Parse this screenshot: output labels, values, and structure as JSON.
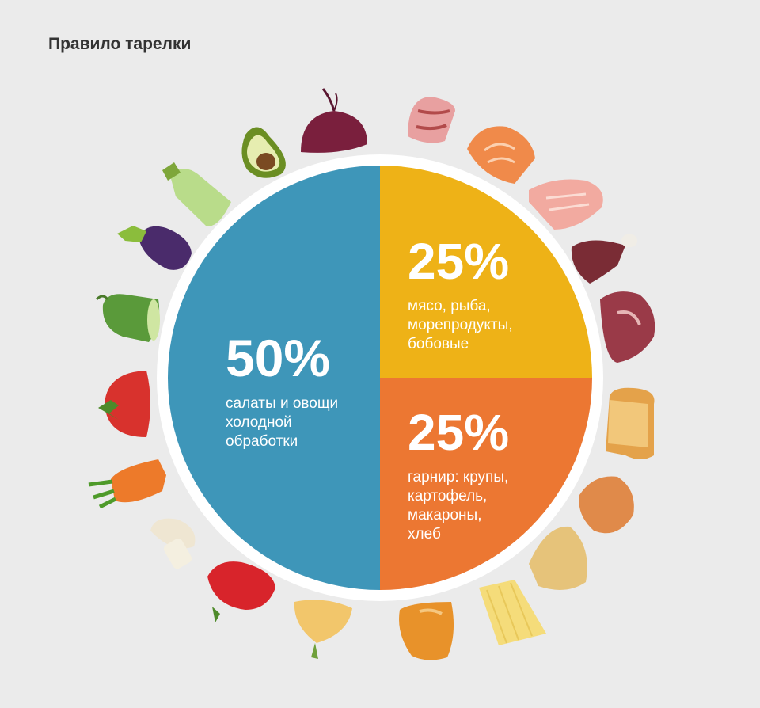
{
  "title": "Правило тарелки",
  "chart_data": {
    "type": "pie",
    "slices": [
      {
        "value": 50,
        "percent_label": "50%",
        "label_lines": [
          "салаты и овощи",
          "холодной",
          "обработки"
        ],
        "color": "#3e96b9"
      },
      {
        "value": 25,
        "percent_label": "25%",
        "label_lines": [
          "мясо, рыба,",
          "морепродукты,",
          "бобовые"
        ],
        "color": "#eeb217"
      },
      {
        "value": 25,
        "percent_label": "25%",
        "label_lines": [
          "гарнир: крупы,",
          "картофель,",
          "макароны,",
          "хлеб"
        ],
        "color": "#ec7732"
      }
    ]
  },
  "decorations": {
    "vegetable_icons": [
      "beetroot-icon",
      "avocado-icon",
      "zucchini-icon",
      "eggplant-icon",
      "cucumber-icon",
      "tomato-icon",
      "carrot-icon",
      "mushroom-icon",
      "bell-pepper-icon",
      "onion-icon"
    ],
    "protein_icons": [
      "bacon-icon",
      "salmon-steak-icon",
      "fish-fillet-icon",
      "drumstick-icon",
      "steak-icon"
    ],
    "carb_icons": [
      "bread-icon",
      "bun-icon",
      "potato-icon",
      "spaghetti-icon",
      "baguette-icon"
    ]
  }
}
